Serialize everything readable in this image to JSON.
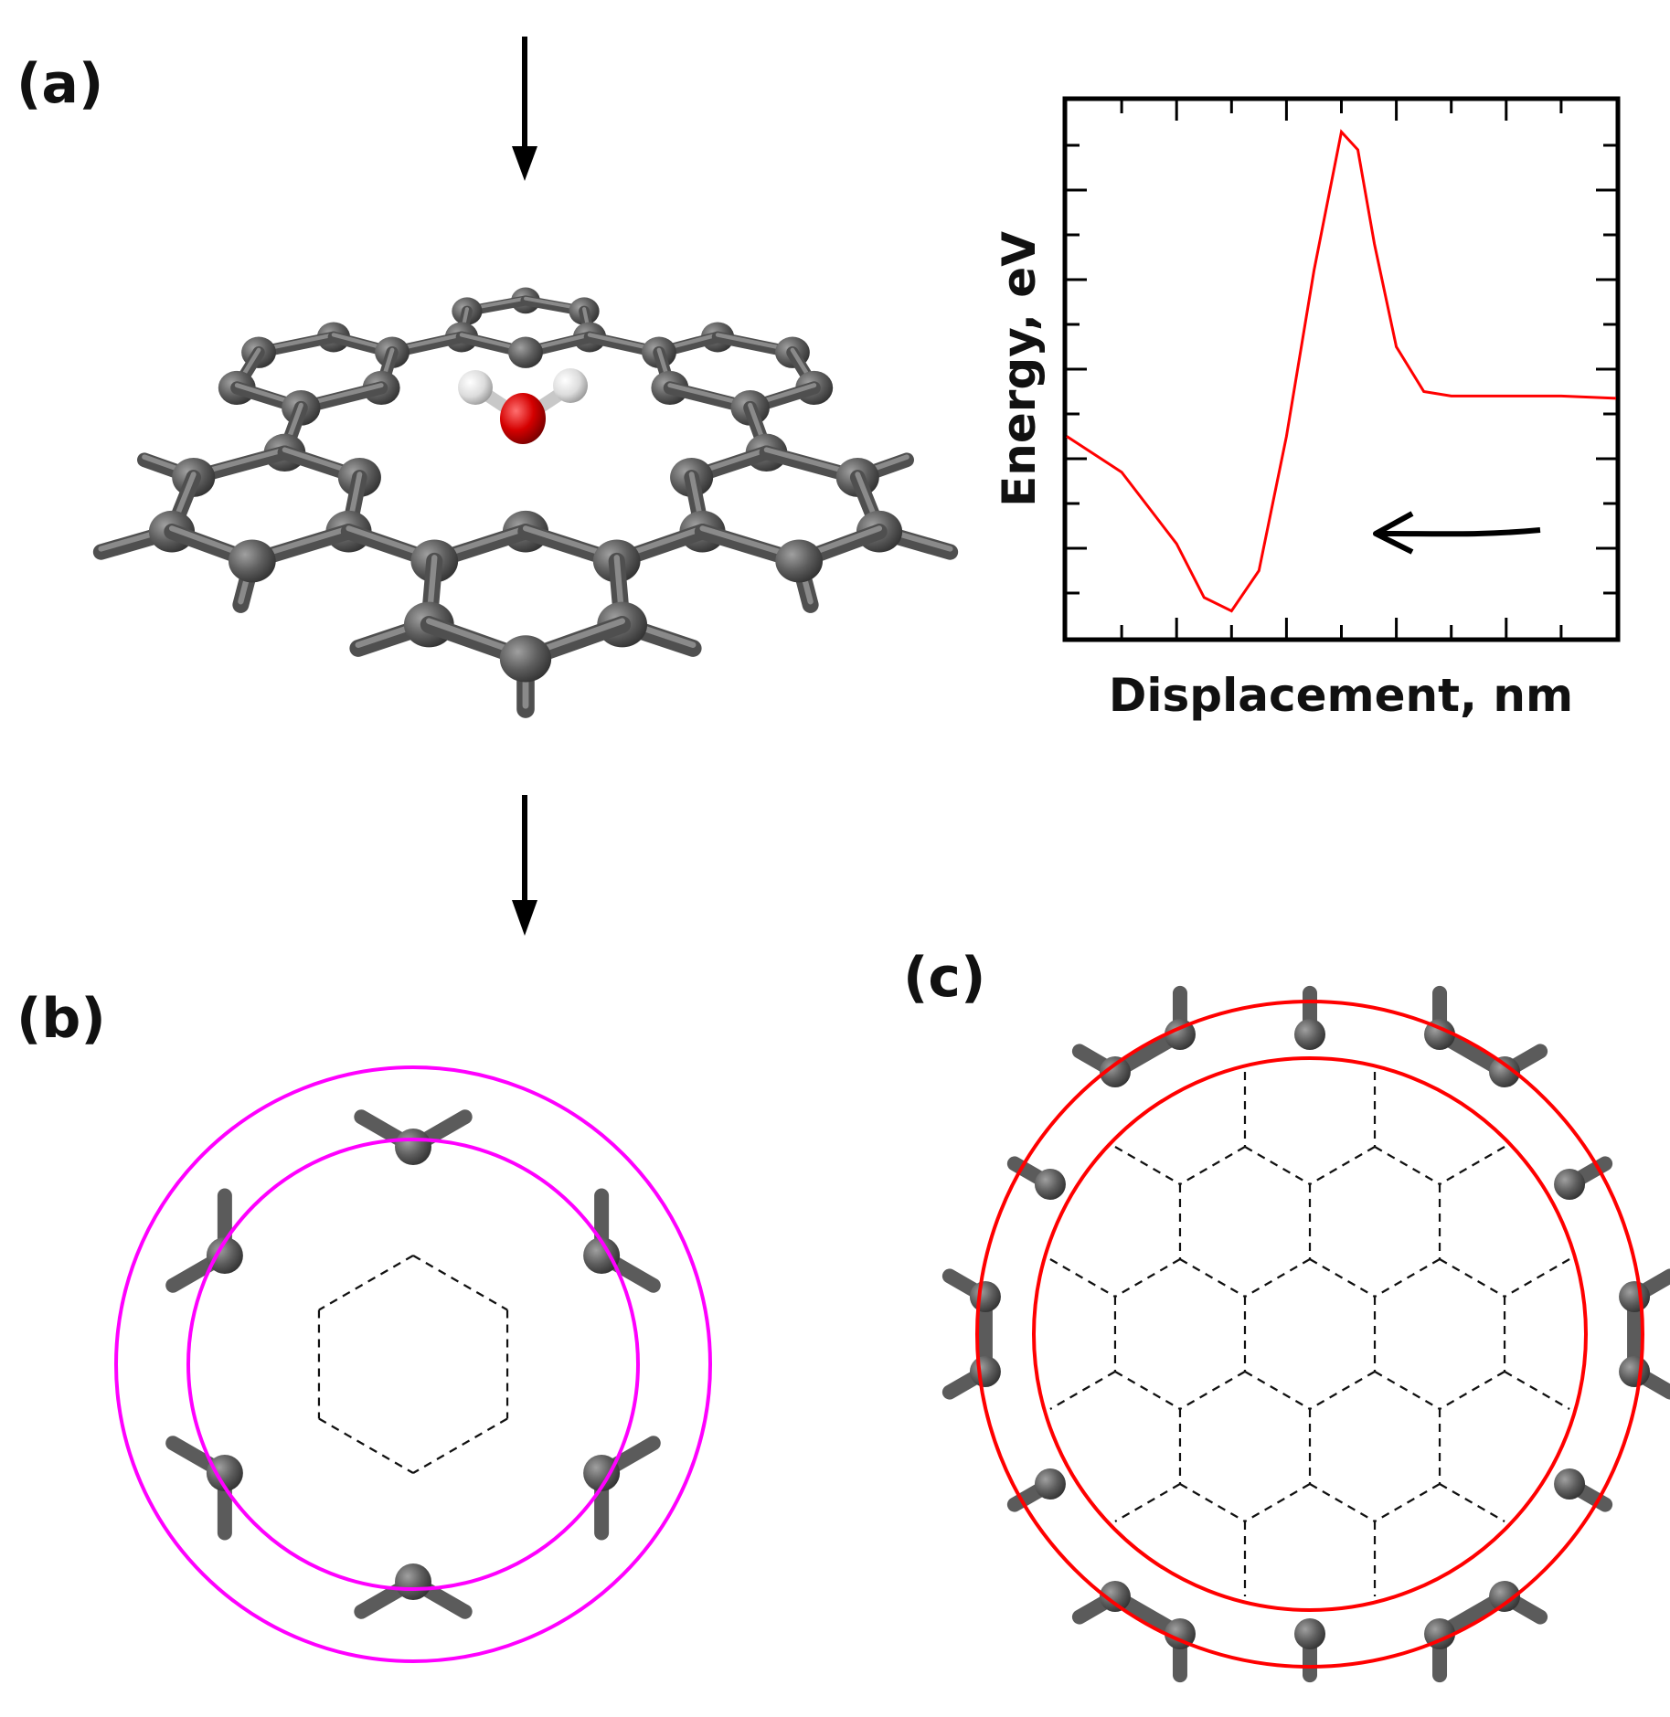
{
  "panels": {
    "a": {
      "label": "(a)"
    },
    "b": {
      "label": "(b)"
    },
    "c": {
      "label": "(c)"
    }
  },
  "chart": {
    "xlabel": "Displacement, nm",
    "ylabel": "Energy, eV",
    "curve_color": "#ff0000"
  },
  "colors": {
    "carbon": "#595959",
    "oxygen": "#d40000",
    "hydrogen": "#e6e6e6",
    "ring_b": "#ff00ff",
    "ring_c": "#ff0000"
  },
  "chart_data": {
    "type": "line",
    "title": "",
    "xlabel": "Displacement, nm",
    "ylabel": "Energy, eV",
    "xlim": [
      0,
      10
    ],
    "ylim": [
      0,
      12
    ],
    "grid": false,
    "series": [
      {
        "x": [
          0,
          1,
          2,
          2.5,
          3,
          3.5,
          4,
          4.5,
          5,
          5.3,
          5.6,
          6,
          6.5,
          7,
          8,
          9,
          10
        ],
        "values": [
          4.5,
          3.7,
          2.1,
          0.9,
          0.6,
          1.5,
          4.5,
          8.2,
          11.3,
          10.9,
          8.8,
          6.5,
          5.5,
          5.4,
          5.4,
          5.4,
          5.35
        ]
      }
    ]
  }
}
